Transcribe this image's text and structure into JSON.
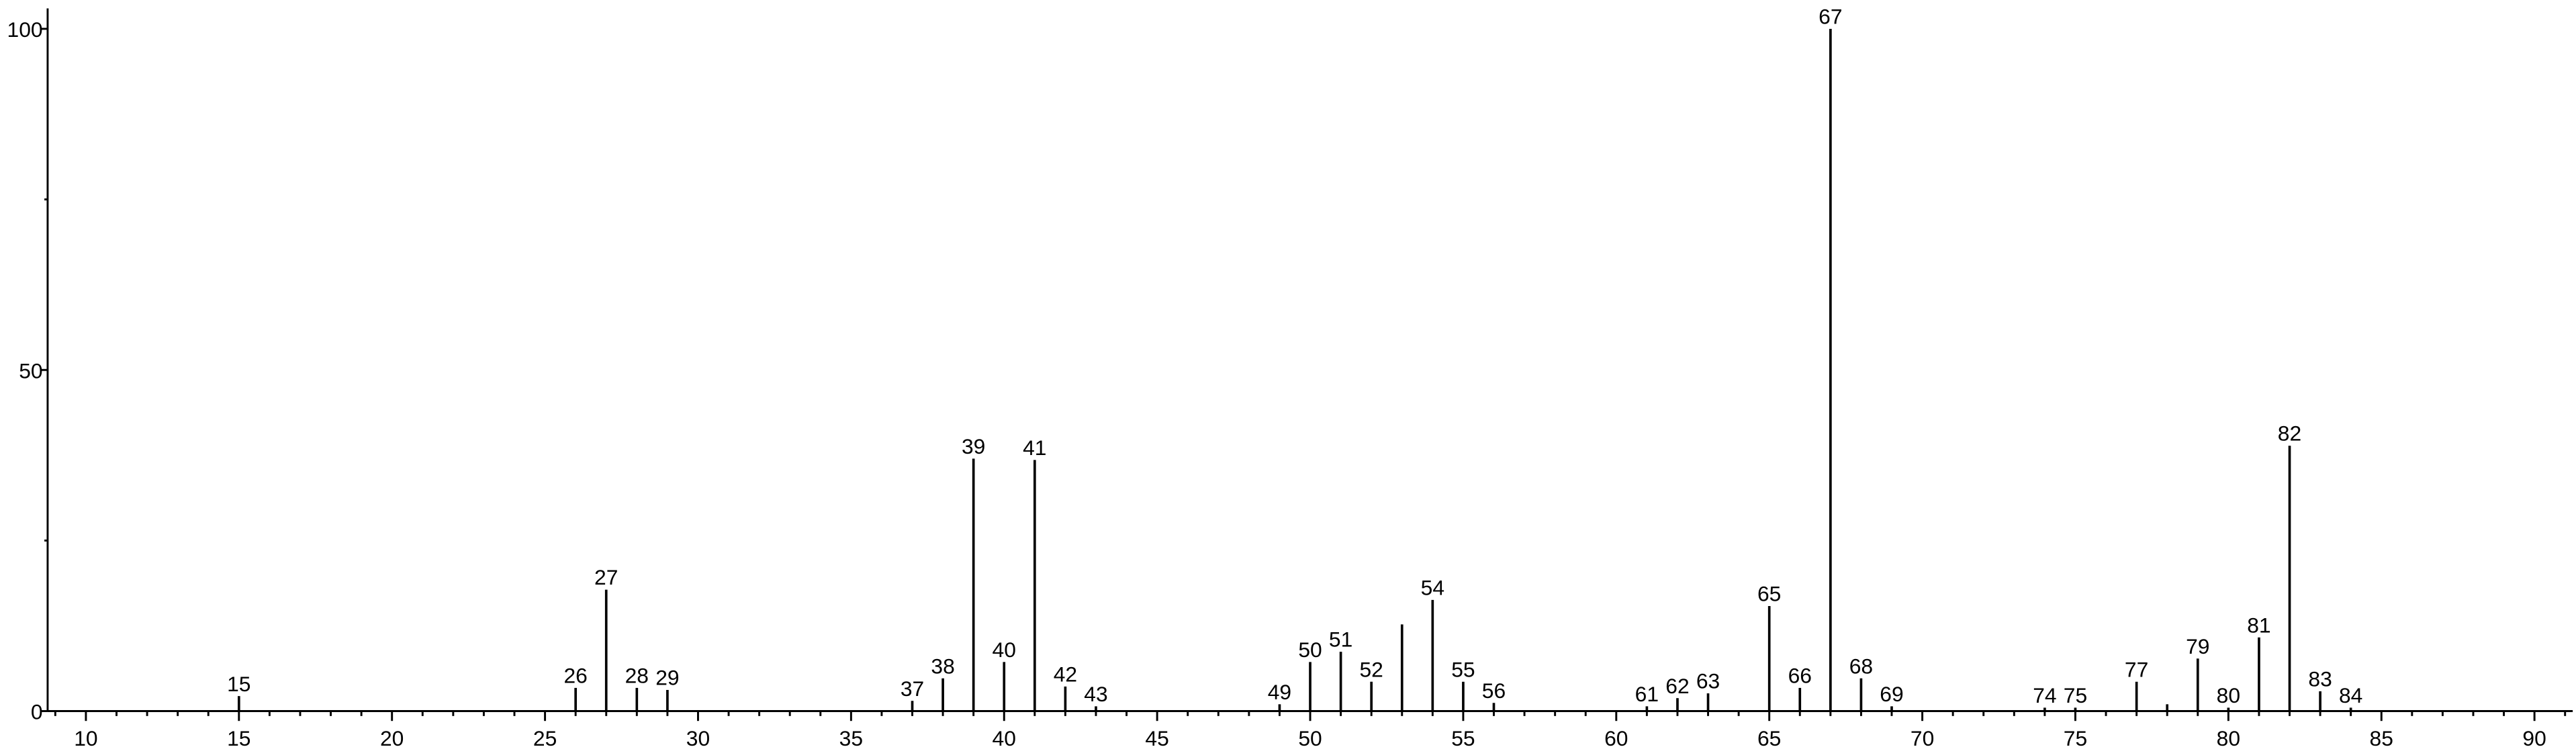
{
  "chart_data": {
    "type": "stem",
    "x": [
      15,
      26,
      27,
      28,
      29,
      37,
      38,
      39,
      40,
      41,
      42,
      43,
      49,
      50,
      51,
      52,
      53,
      54,
      55,
      56,
      61,
      62,
      63,
      65,
      66,
      67,
      68,
      69,
      74,
      75,
      77,
      78,
      79,
      80,
      81,
      82,
      83,
      84
    ],
    "values": [
      2.2,
      3.4,
      17.8,
      3.4,
      3.1,
      1.5,
      4.8,
      37,
      7.2,
      36.8,
      3.6,
      0.7,
      1,
      7.2,
      8.7,
      4.3,
      12.7,
      16.3,
      4.3,
      1.2,
      0.7,
      1.9,
      2.6,
      15.4,
      3.4,
      100,
      4.8,
      0.7,
      0.5,
      0.5,
      4.3,
      1,
      7.7,
      0.5,
      10.8,
      38.9,
      2.9,
      0.5
    ],
    "peak_labels": [
      15,
      26,
      27,
      28,
      29,
      37,
      38,
      39,
      40,
      41,
      42,
      43,
      49,
      50,
      51,
      52,
      null,
      54,
      55,
      56,
      61,
      62,
      63,
      65,
      66,
      67,
      68,
      69,
      74,
      75,
      77,
      null,
      79,
      80,
      81,
      82,
      83,
      84
    ],
    "color": "#000000",
    "xlim": [
      8.75,
      91.25
    ],
    "ylim": [
      0,
      103
    ],
    "xticks": [
      10,
      15,
      20,
      25,
      30,
      35,
      40,
      45,
      50,
      55,
      60,
      65,
      70,
      75,
      80,
      85,
      90
    ],
    "xminorticks": [
      9,
      11,
      12,
      13,
      14,
      16,
      17,
      18,
      19,
      21,
      22,
      23,
      24,
      26,
      27,
      28,
      29,
      31,
      32,
      33,
      34,
      36,
      37,
      38,
      39,
      41,
      42,
      43,
      44,
      46,
      47,
      48,
      49,
      51,
      52,
      53,
      54,
      56,
      57,
      58,
      59,
      61,
      62,
      63,
      64,
      66,
      67,
      68,
      69,
      71,
      72,
      73,
      74,
      76,
      77,
      78,
      79,
      81,
      82,
      83,
      84,
      86,
      87,
      88,
      89,
      91
    ],
    "yticks": [
      0,
      50,
      100
    ],
    "yminorticks": [
      25,
      75
    ]
  }
}
